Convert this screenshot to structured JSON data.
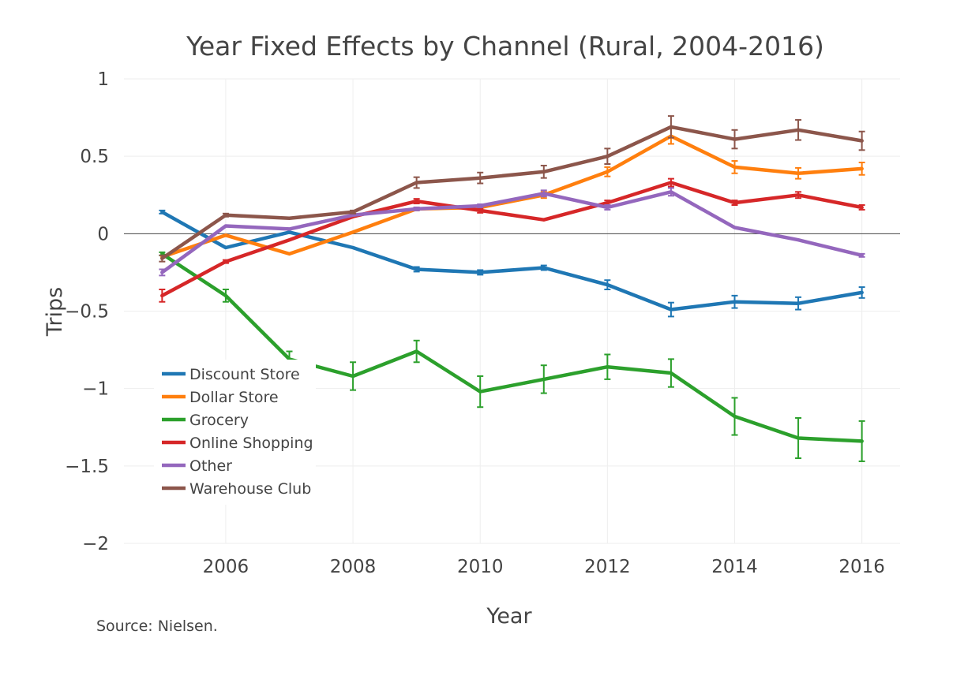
{
  "chart_data": {
    "type": "line",
    "title": "Year Fixed Effects by Channel (Rural, 2004-2016)",
    "xlabel": "Year",
    "ylabel": "Trips",
    "source": "Source: Nielsen.",
    "xlim": [
      2004.4,
      2016.6
    ],
    "ylim": [
      -2,
      1
    ],
    "x_ticks": [
      2006,
      2008,
      2010,
      2012,
      2014,
      2016
    ],
    "x_tick_labels": [
      "2006",
      "2008",
      "2010",
      "2012",
      "2014",
      "2016"
    ],
    "y_ticks": [
      1,
      0.5,
      0,
      -0.5,
      -1,
      -1.5,
      -2
    ],
    "y_tick_labels": [
      "1",
      "0.5",
      "0",
      "−0.5",
      "−1",
      "−1.5",
      "−2"
    ],
    "grid": true,
    "legend_position": "lower-left",
    "x": [
      2005,
      2006,
      2007,
      2008,
      2009,
      2010,
      2011,
      2012,
      2013,
      2014,
      2015,
      2016
    ],
    "series": [
      {
        "name": "Discount Store",
        "color": "#1f77b4",
        "values": [
          0.14,
          -0.09,
          0.01,
          -0.09,
          -0.23,
          -0.25,
          -0.22,
          -0.33,
          -0.49,
          -0.44,
          -0.45,
          -0.38
        ],
        "errors": [
          0.01,
          0.0,
          0.0,
          0.0,
          0.015,
          0.015,
          0.015,
          0.03,
          0.045,
          0.04,
          0.04,
          0.035
        ]
      },
      {
        "name": "Dollar Store",
        "color": "#ff7f0e",
        "values": [
          -0.15,
          -0.01,
          -0.13,
          0.01,
          0.16,
          0.17,
          0.25,
          0.4,
          0.63,
          0.43,
          0.39,
          0.42
        ],
        "errors": [
          0.0,
          0.0,
          0.0,
          0.0,
          0.01,
          0.01,
          0.02,
          0.03,
          0.05,
          0.04,
          0.035,
          0.04
        ]
      },
      {
        "name": "Grocery",
        "color": "#2ca02c",
        "values": [
          -0.13,
          -0.4,
          -0.81,
          -0.92,
          -0.76,
          -1.02,
          -0.94,
          -0.86,
          -0.9,
          -1.18,
          -1.32,
          -1.34
        ],
        "errors": [
          0.01,
          0.04,
          0.05,
          0.09,
          0.07,
          0.1,
          0.09,
          0.08,
          0.09,
          0.12,
          0.13,
          0.13
        ]
      },
      {
        "name": "Online Shopping",
        "color": "#d62728",
        "values": [
          -0.4,
          -0.18,
          -0.04,
          0.11,
          0.21,
          0.15,
          0.09,
          0.2,
          0.33,
          0.2,
          0.25,
          0.17
        ],
        "errors": [
          0.04,
          0.01,
          0.0,
          0.0,
          0.015,
          0.015,
          0.0,
          0.015,
          0.025,
          0.015,
          0.02,
          0.015
        ]
      },
      {
        "name": "Other",
        "color": "#9467bd",
        "values": [
          -0.25,
          0.05,
          0.03,
          0.12,
          0.16,
          0.18,
          0.26,
          0.17,
          0.27,
          0.04,
          -0.04,
          -0.14
        ],
        "errors": [
          0.02,
          0.0,
          0.0,
          0.0,
          0.01,
          0.01,
          0.02,
          0.015,
          0.025,
          0.0,
          0.0,
          0.01
        ]
      },
      {
        "name": "Warehouse Club",
        "color": "#8c564b",
        "values": [
          -0.16,
          0.12,
          0.1,
          0.14,
          0.33,
          0.36,
          0.4,
          0.5,
          0.69,
          0.61,
          0.67,
          0.6
        ],
        "errors": [
          0.02,
          0.01,
          0.0,
          0.01,
          0.035,
          0.035,
          0.04,
          0.05,
          0.07,
          0.06,
          0.065,
          0.06
        ]
      }
    ]
  }
}
